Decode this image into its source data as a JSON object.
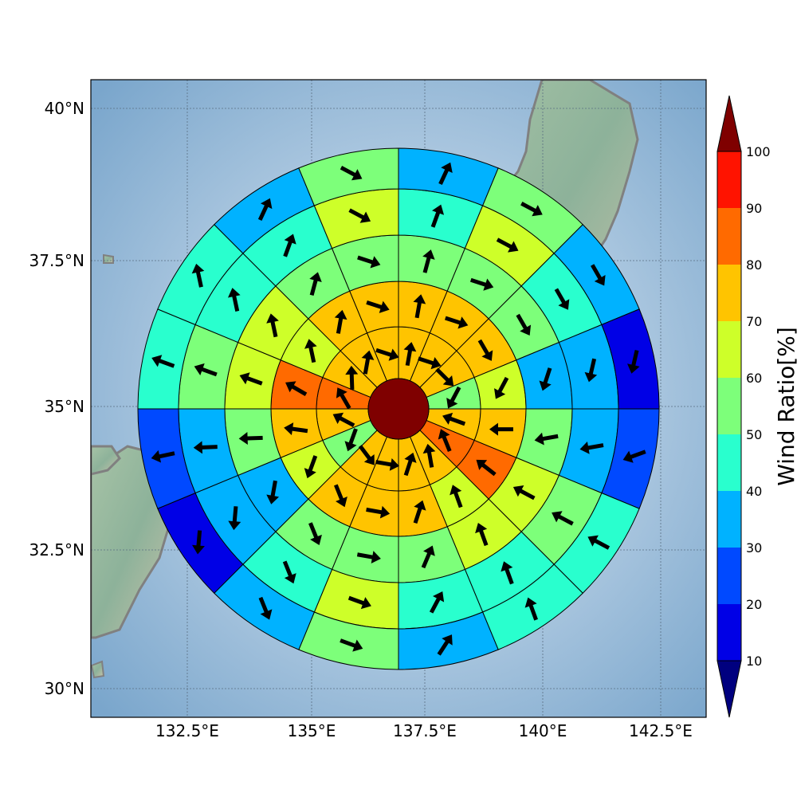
{
  "map": {
    "lat_labels": [
      "40°N",
      "37.5°N",
      "35°N",
      "32.5°N",
      "30°N"
    ],
    "lon_labels": [
      "132.5°E",
      "135°E",
      "137.5°E",
      "140°E",
      "142.5°E"
    ]
  },
  "colorbar": {
    "label": "Wind Ratio[%]",
    "ticks": [
      "10",
      "20",
      "30",
      "40",
      "50",
      "60",
      "70",
      "80",
      "90",
      "100"
    ],
    "colors": [
      "#00007f",
      "#0000e6",
      "#0049ff",
      "#00b2ff",
      "#29ffce",
      "#7dff7a",
      "#ceff29",
      "#ffc400",
      "#ff6a00",
      "#ff1300",
      "#7f0000"
    ]
  },
  "chart_data": {
    "type": "heatmap",
    "description": "polar sector plot of wind ratio (%) with wind direction arrows",
    "center": {
      "lon": 137.0,
      "lat": 35.0
    },
    "value_unit": "%",
    "rings": [
      {
        "ring": 1,
        "sectors": [
          {
            "dir": 0,
            "value": 75,
            "arrow_deg": 10
          },
          {
            "dir": 1,
            "value": 75,
            "arrow_deg": 100
          },
          {
            "dir": 2,
            "value": 75,
            "arrow_deg": 135
          },
          {
            "dir": 3,
            "value": 55,
            "arrow_deg": 200
          },
          {
            "dir": 4,
            "value": 75,
            "arrow_deg": 290
          },
          {
            "dir": 5,
            "value": 85,
            "arrow_deg": 330
          },
          {
            "dir": 6,
            "value": 75,
            "arrow_deg": 350
          }
        ]
      },
      {
        "ring": 2,
        "sectors": [
          {
            "dir": 0,
            "value": 75,
            "arrow_deg": 10
          },
          {
            "dir": 1,
            "value": 75,
            "arrow_deg": 100
          },
          {
            "dir": 2,
            "value": 75,
            "arrow_deg": 150
          },
          {
            "dir": 3,
            "value": 65,
            "arrow_deg": 200
          },
          {
            "dir": 4,
            "value": 75,
            "arrow_deg": 270
          },
          {
            "dir": 5,
            "value": 85,
            "arrow_deg": 300
          },
          {
            "dir": 6,
            "value": 65,
            "arrow_deg": 340
          }
        ]
      },
      {
        "ring": 3,
        "sectors": [
          {
            "dir": 0,
            "value": 55,
            "arrow_deg": 15
          },
          {
            "dir": 1,
            "value": 55,
            "arrow_deg": 100
          },
          {
            "dir": 2,
            "value": 55,
            "arrow_deg": 150
          },
          {
            "dir": 3,
            "value": 35,
            "arrow_deg": 190
          },
          {
            "dir": 4,
            "value": 55,
            "arrow_deg": 260
          },
          {
            "dir": 5,
            "value": 65,
            "arrow_deg": 290
          },
          {
            "dir": 6,
            "value": 65,
            "arrow_deg": 340
          }
        ]
      },
      {
        "ring": 4,
        "sectors": [
          {
            "dir": 0,
            "value": 45,
            "arrow_deg": 20
          },
          {
            "dir": 1,
            "value": 65,
            "arrow_deg": 110
          },
          {
            "dir": 2,
            "value": 45,
            "arrow_deg": 150
          },
          {
            "dir": 3,
            "value": 35,
            "arrow_deg": 185
          },
          {
            "dir": 4,
            "value": 35,
            "arrow_deg": 260
          },
          {
            "dir": 5,
            "value": 55,
            "arrow_deg": 290
          },
          {
            "dir": 6,
            "value": 45,
            "arrow_deg": 340
          }
        ]
      },
      {
        "ring": 5,
        "sectors": [
          {
            "dir": 0,
            "value": 35,
            "arrow_deg": 25
          },
          {
            "dir": 1,
            "value": 55,
            "arrow_deg": 110
          },
          {
            "dir": 2,
            "value": 35,
            "arrow_deg": 150
          },
          {
            "dir": 3,
            "value": 15,
            "arrow_deg": 185
          },
          {
            "dir": 4,
            "value": 25,
            "arrow_deg": 250
          },
          {
            "dir": 5,
            "value": 45,
            "arrow_deg": 290
          },
          {
            "dir": 6,
            "value": 45,
            "arrow_deg": 340
          }
        ]
      }
    ],
    "center_value": 100
  }
}
